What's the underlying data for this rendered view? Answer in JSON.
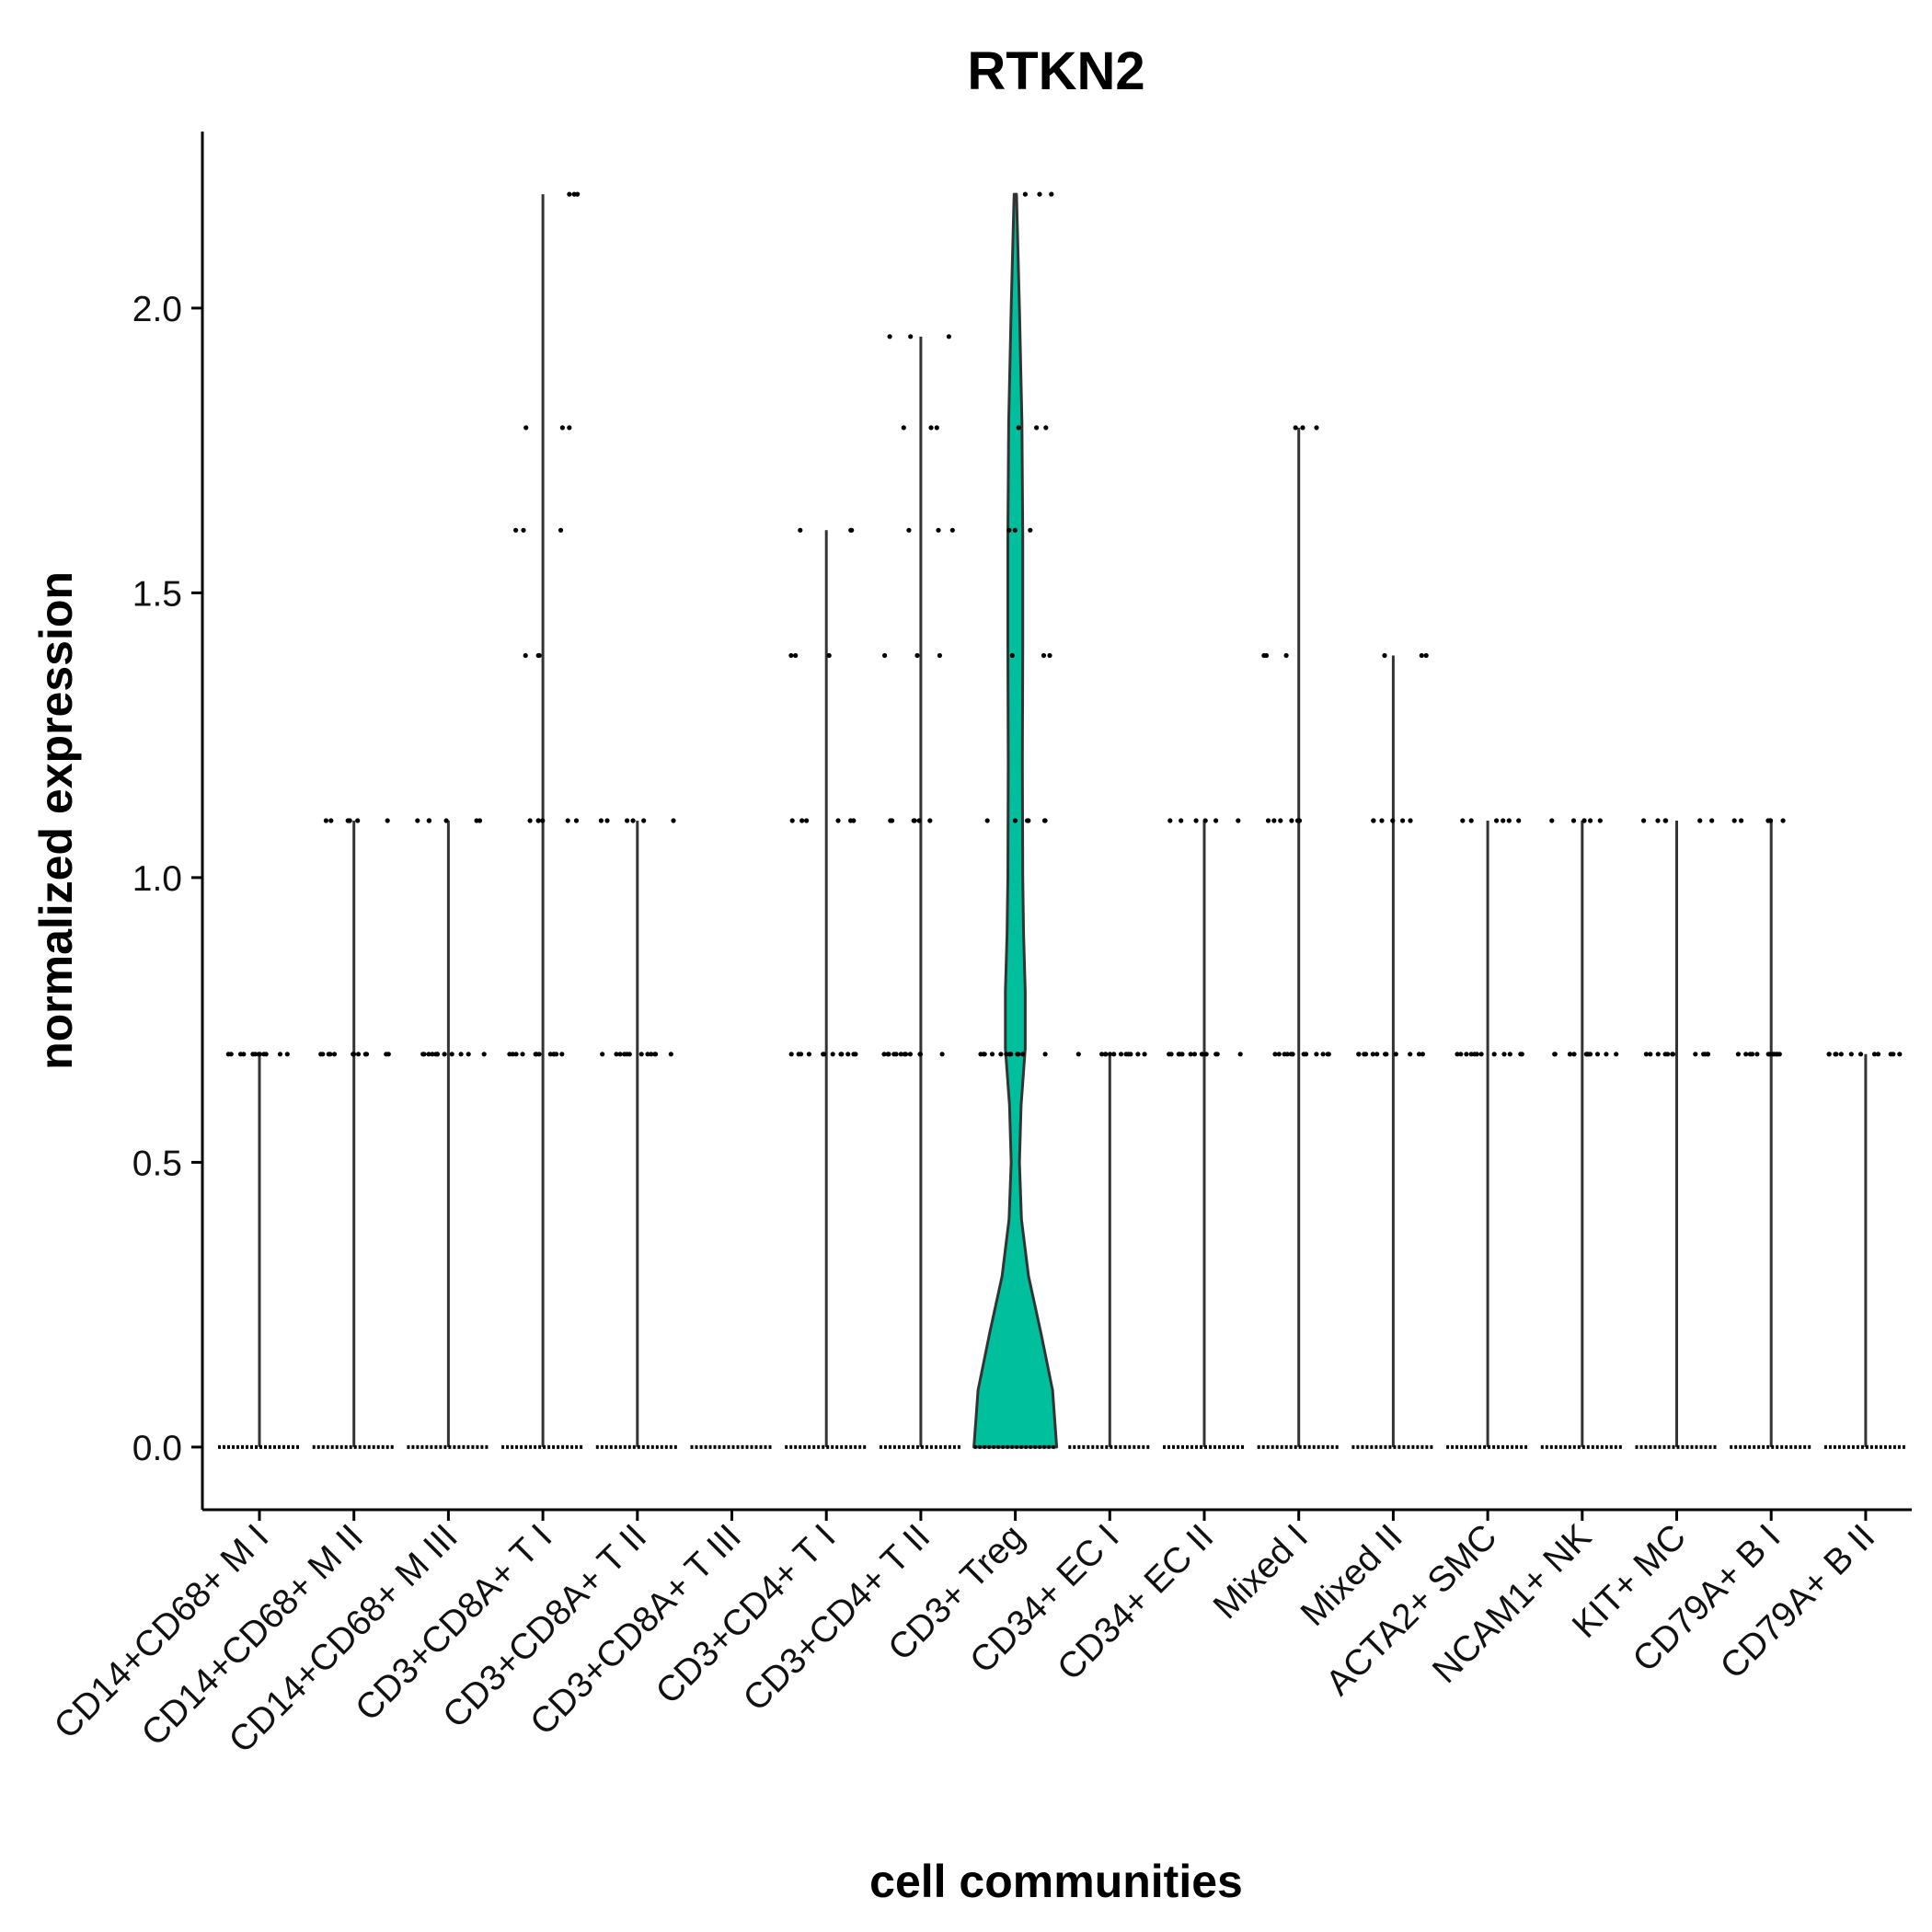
{
  "chart_data": {
    "type": "violin",
    "title": "RTKN2",
    "xlabel": "cell communities",
    "ylabel": "normalized expression",
    "ylim": [
      -0.11,
      2.31
    ],
    "yticks": [
      "0.0",
      "0.5",
      "1.0",
      "1.5",
      "2.0"
    ],
    "ytick_values": [
      0,
      0.5,
      1.0,
      1.5,
      2.0
    ],
    "grid": false,
    "legend": "none",
    "colors": {
      "treg_fill": "#00BF9C",
      "outline": "#333333",
      "point": "#000000"
    },
    "categories": [
      "CD14+CD68+ M I",
      "CD14+CD68+ M II",
      "CD14+CD68+ M III",
      "CD3+CD8A+ T I",
      "CD3+CD8A+ T II",
      "CD3+CD8A+ T III",
      "CD3+CD4+ T I",
      "CD3+CD4+ T II",
      "CD3+ Treg",
      "CD34+ EC I",
      "CD34+ EC II",
      "Mixed I",
      "Mixed II",
      "ACTA2+ SMC",
      "NCAM1+ NK",
      "KIT+ MC",
      "CD79A+ B I",
      "CD79A+ B II"
    ],
    "series": [
      {
        "max": 0.69,
        "nonzero_levels": [
          0.69
        ]
      },
      {
        "max": 1.1,
        "nonzero_levels": [
          0.69,
          1.1
        ]
      },
      {
        "max": 1.1,
        "nonzero_levels": [
          0.69,
          1.1
        ]
      },
      {
        "max": 2.2,
        "nonzero_levels": [
          0.69,
          1.1,
          1.39,
          1.61,
          1.79,
          2.2
        ]
      },
      {
        "max": 1.1,
        "nonzero_levels": [
          0.69,
          1.1
        ]
      },
      {
        "max": 0.0,
        "nonzero_levels": []
      },
      {
        "max": 1.61,
        "nonzero_levels": [
          0.69,
          1.1,
          1.39,
          1.61
        ]
      },
      {
        "max": 1.95,
        "nonzero_levels": [
          0.69,
          1.1,
          1.39,
          1.61,
          1.79,
          1.95
        ]
      },
      {
        "max": 2.2,
        "nonzero_levels": [
          0.69,
          1.1,
          1.39,
          1.61,
          1.79,
          2.2
        ],
        "filled": true
      },
      {
        "max": 0.69,
        "nonzero_levels": [
          0.69
        ]
      },
      {
        "max": 1.1,
        "nonzero_levels": [
          0.69,
          1.1
        ]
      },
      {
        "max": 1.79,
        "nonzero_levels": [
          0.69,
          1.1,
          1.39,
          1.79
        ]
      },
      {
        "max": 1.39,
        "nonzero_levels": [
          0.69,
          1.1,
          1.39
        ]
      },
      {
        "max": 1.1,
        "nonzero_levels": [
          0.69,
          1.1
        ]
      },
      {
        "max": 1.1,
        "nonzero_levels": [
          0.69,
          1.1
        ]
      },
      {
        "max": 1.1,
        "nonzero_levels": [
          0.69,
          1.1
        ]
      },
      {
        "max": 1.1,
        "nonzero_levels": [
          0.69,
          1.1
        ]
      },
      {
        "max": 0.69,
        "nonzero_levels": [
          0.69
        ]
      }
    ],
    "treg_density": [
      [
        0.0,
        1.0
      ],
      [
        0.1,
        0.9
      ],
      [
        0.2,
        0.62
      ],
      [
        0.3,
        0.32
      ],
      [
        0.4,
        0.15
      ],
      [
        0.5,
        0.1
      ],
      [
        0.6,
        0.14
      ],
      [
        0.7,
        0.24
      ],
      [
        0.8,
        0.24
      ],
      [
        0.9,
        0.2
      ],
      [
        1.0,
        0.18
      ],
      [
        1.2,
        0.17
      ],
      [
        1.4,
        0.18
      ],
      [
        1.6,
        0.18
      ],
      [
        1.8,
        0.16
      ],
      [
        2.0,
        0.1
      ],
      [
        2.2,
        0.03
      ]
    ]
  }
}
